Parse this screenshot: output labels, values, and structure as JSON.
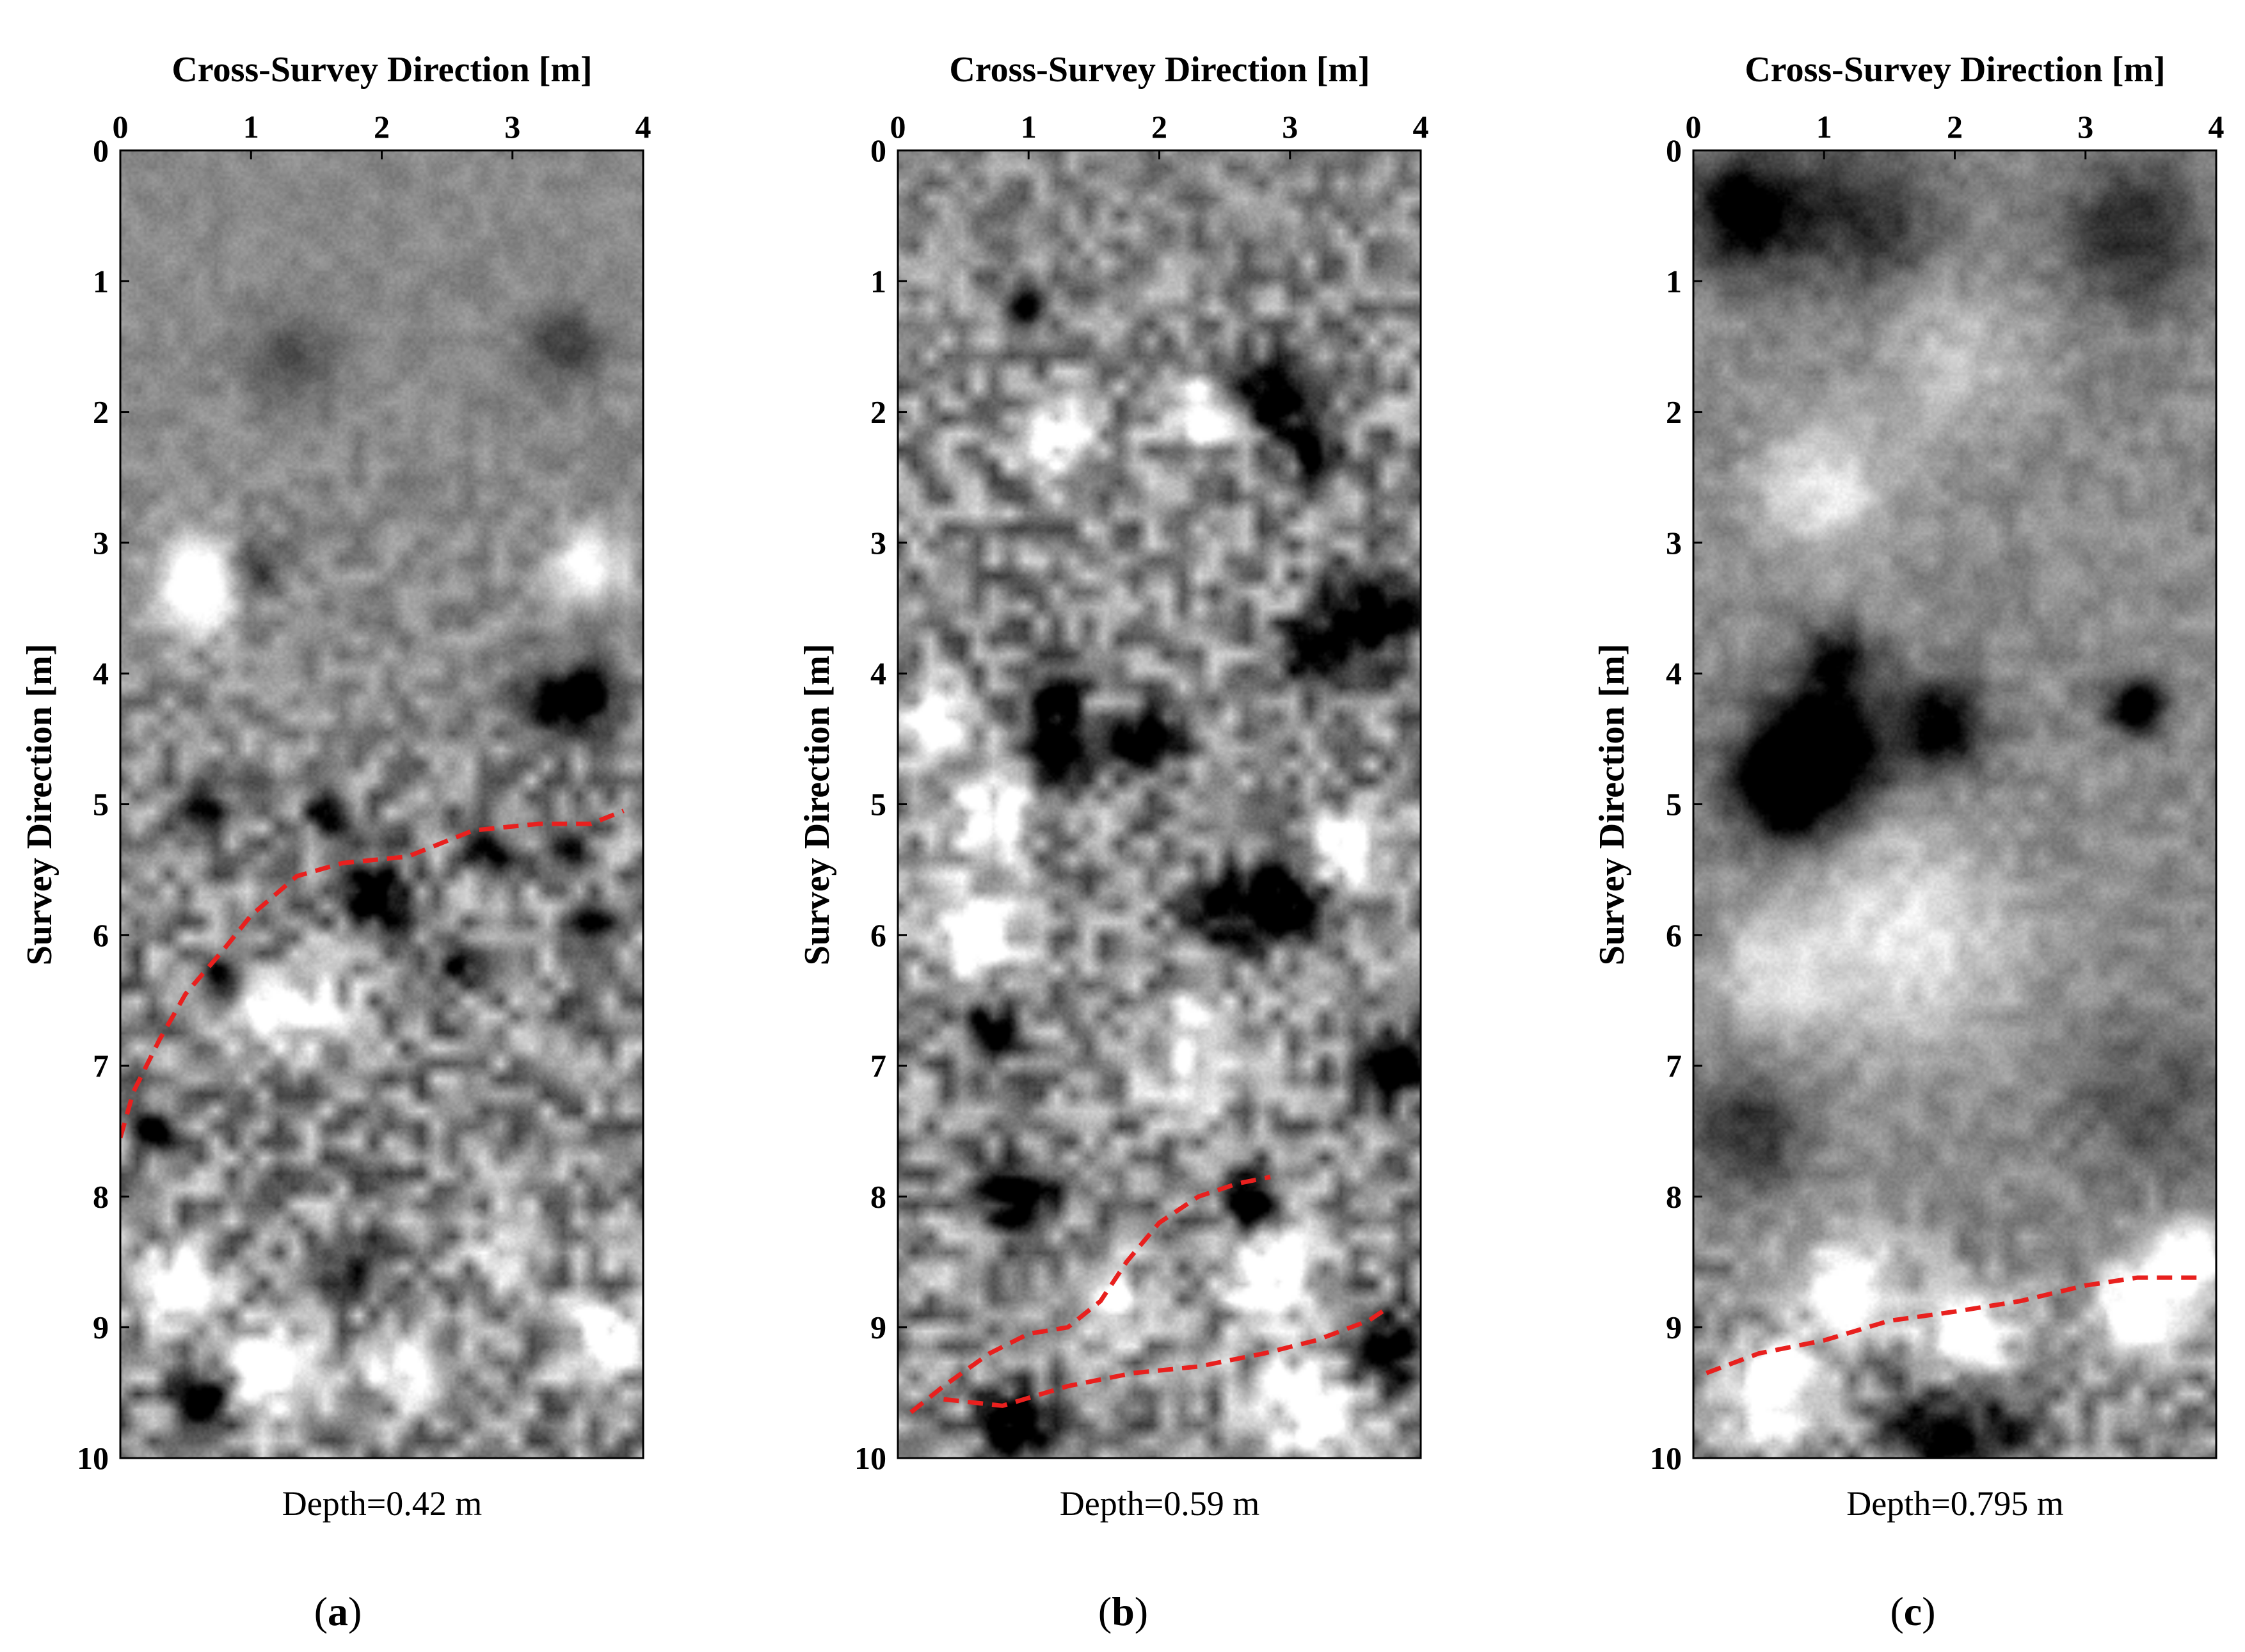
{
  "colors": {
    "boundary_line": "#e8201e",
    "image_mid_gray": "#8a8a8a",
    "axis": "#000000"
  },
  "chart_data": [
    {
      "type": "heatmap",
      "panel_label": "(a)",
      "panel_letter": "a",
      "xlabel": "Cross-Survey Direction [m]",
      "ylabel": "Survey Direction [m]",
      "x_ticks": [
        "0",
        "1",
        "2",
        "3",
        "4"
      ],
      "y_ticks": [
        "0",
        "1",
        "2",
        "3",
        "4",
        "5",
        "6",
        "7",
        "8",
        "9",
        "10"
      ],
      "xlim": [
        0,
        4
      ],
      "ylim": [
        0,
        10
      ],
      "caption": "Depth=0.42 m",
      "depth_m": 0.42,
      "colormap": "gray",
      "boundaries": [
        {
          "x": [
            0.0,
            0.1,
            0.3,
            0.5,
            0.8,
            1.0,
            1.35,
            1.7,
            2.2,
            2.7,
            3.2,
            3.6,
            3.85
          ],
          "y": [
            7.55,
            7.2,
            6.8,
            6.45,
            6.1,
            5.85,
            5.55,
            5.45,
            5.4,
            5.2,
            5.15,
            5.15,
            5.05
          ]
        }
      ],
      "features": [
        {
          "x": 0.6,
          "y": 3.3,
          "v": 0.9,
          "r": 0.25
        },
        {
          "x": 1.0,
          "y": 3.2,
          "v": -0.6,
          "r": 0.15
        },
        {
          "x": 3.6,
          "y": 3.2,
          "v": 0.7,
          "r": 0.2
        },
        {
          "x": 3.6,
          "y": 4.15,
          "v": -1.0,
          "r": 0.15
        },
        {
          "x": 3.3,
          "y": 4.25,
          "v": -0.6,
          "r": 0.2
        },
        {
          "x": 1.3,
          "y": 1.6,
          "v": -0.3,
          "r": 0.25
        },
        {
          "x": 3.4,
          "y": 1.5,
          "v": -0.4,
          "r": 0.2
        },
        {
          "x": 0.6,
          "y": 5.0,
          "v": -0.9,
          "r": 0.12
        },
        {
          "x": 1.6,
          "y": 5.05,
          "v": -0.8,
          "r": 0.12
        },
        {
          "x": 1.95,
          "y": 5.7,
          "v": -1.0,
          "r": 0.18
        },
        {
          "x": 0.8,
          "y": 6.4,
          "v": -1.0,
          "r": 0.15
        },
        {
          "x": 2.6,
          "y": 6.2,
          "v": -0.9,
          "r": 0.12
        },
        {
          "x": 2.8,
          "y": 5.35,
          "v": -0.8,
          "r": 0.12
        },
        {
          "x": 3.4,
          "y": 5.35,
          "v": -0.8,
          "r": 0.1
        },
        {
          "x": 3.6,
          "y": 5.9,
          "v": -0.8,
          "r": 0.12
        },
        {
          "x": 0.25,
          "y": 7.5,
          "v": -1.0,
          "r": 0.12
        },
        {
          "x": 0.4,
          "y": 8.7,
          "v": 0.9,
          "r": 0.2
        },
        {
          "x": 1.1,
          "y": 9.4,
          "v": 0.9,
          "r": 0.25
        },
        {
          "x": 0.65,
          "y": 9.55,
          "v": -1.0,
          "r": 0.18
        },
        {
          "x": 2.2,
          "y": 9.3,
          "v": 0.9,
          "r": 0.2
        },
        {
          "x": 3.7,
          "y": 9.1,
          "v": 0.9,
          "r": 0.2
        },
        {
          "x": 1.8,
          "y": 8.5,
          "v": -0.7,
          "r": 0.15
        },
        {
          "x": 3.0,
          "y": 8.4,
          "v": 0.6,
          "r": 0.2
        },
        {
          "x": 1.5,
          "y": 6.6,
          "v": 0.7,
          "r": 0.2
        },
        {
          "x": 1.0,
          "y": 6.6,
          "v": 0.7,
          "r": 0.2
        }
      ],
      "noise_amplitude": [
        0.18,
        0.2,
        0.25,
        0.4,
        0.55,
        0.9,
        1.0,
        1.0,
        1.0,
        1.0,
        1.0
      ]
    },
    {
      "type": "heatmap",
      "panel_label": "(b)",
      "panel_letter": "b",
      "xlabel": "Cross-Survey Direction [m]",
      "ylabel": "Survey Direction [m]",
      "x_ticks": [
        "0",
        "1",
        "2",
        "3",
        "4"
      ],
      "y_ticks": [
        "0",
        "1",
        "2",
        "3",
        "4",
        "5",
        "6",
        "7",
        "8",
        "9",
        "10"
      ],
      "xlim": [
        0,
        4
      ],
      "ylim": [
        0,
        10
      ],
      "caption": "Depth=0.59 m",
      "depth_m": 0.59,
      "colormap": "gray",
      "boundaries": [
        {
          "x": [
            0.1,
            0.35,
            0.7,
            1.0,
            1.3,
            1.55,
            1.75,
            2.0,
            2.3,
            2.6,
            2.85
          ],
          "y": [
            9.65,
            9.45,
            9.2,
            9.05,
            9.0,
            8.8,
            8.5,
            8.2,
            8.0,
            7.9,
            7.85
          ]
        },
        {
          "x": [
            0.35,
            0.8,
            1.3,
            1.8,
            2.3,
            2.8,
            3.2,
            3.6,
            3.75
          ],
          "y": [
            9.55,
            9.6,
            9.45,
            9.35,
            9.3,
            9.2,
            9.1,
            8.95,
            8.85
          ]
        }
      ],
      "features": [
        {
          "x": 1.0,
          "y": 1.2,
          "v": -0.9,
          "r": 0.12
        },
        {
          "x": 2.9,
          "y": 1.85,
          "v": -1.0,
          "r": 0.2
        },
        {
          "x": 3.2,
          "y": 2.3,
          "v": -0.8,
          "r": 0.15
        },
        {
          "x": 2.3,
          "y": 2.0,
          "v": 0.9,
          "r": 0.18
        },
        {
          "x": 1.2,
          "y": 2.2,
          "v": 0.7,
          "r": 0.2
        },
        {
          "x": 3.6,
          "y": 3.6,
          "v": -1.0,
          "r": 0.25
        },
        {
          "x": 3.1,
          "y": 3.8,
          "v": -0.8,
          "r": 0.15
        },
        {
          "x": 1.2,
          "y": 4.15,
          "v": -1.0,
          "r": 0.12
        },
        {
          "x": 1.25,
          "y": 4.55,
          "v": -1.0,
          "r": 0.2
        },
        {
          "x": 1.9,
          "y": 4.5,
          "v": -0.9,
          "r": 0.18
        },
        {
          "x": 0.3,
          "y": 4.4,
          "v": 0.9,
          "r": 0.2
        },
        {
          "x": 0.7,
          "y": 5.1,
          "v": 0.9,
          "r": 0.2
        },
        {
          "x": 3.0,
          "y": 5.7,
          "v": -1.0,
          "r": 0.22
        },
        {
          "x": 2.5,
          "y": 5.8,
          "v": -0.9,
          "r": 0.18
        },
        {
          "x": 0.6,
          "y": 6.0,
          "v": 0.9,
          "r": 0.25
        },
        {
          "x": 3.4,
          "y": 5.4,
          "v": 0.9,
          "r": 0.2
        },
        {
          "x": 3.8,
          "y": 7.0,
          "v": -1.0,
          "r": 0.2
        },
        {
          "x": 0.9,
          "y": 8.0,
          "v": -1.0,
          "r": 0.2
        },
        {
          "x": 2.7,
          "y": 8.05,
          "v": -1.0,
          "r": 0.15
        },
        {
          "x": 3.7,
          "y": 9.2,
          "v": -1.0,
          "r": 0.22
        },
        {
          "x": 0.9,
          "y": 9.75,
          "v": -1.0,
          "r": 0.18
        },
        {
          "x": 3.2,
          "y": 9.6,
          "v": 0.9,
          "r": 0.3
        },
        {
          "x": 2.8,
          "y": 8.6,
          "v": 0.9,
          "r": 0.25
        },
        {
          "x": 1.6,
          "y": 8.8,
          "v": 0.8,
          "r": 0.2
        },
        {
          "x": 0.7,
          "y": 6.7,
          "v": -0.8,
          "r": 0.15
        },
        {
          "x": 2.3,
          "y": 6.9,
          "v": 0.6,
          "r": 0.3
        }
      ],
      "noise_amplitude": [
        0.55,
        0.8,
        0.95,
        1.0,
        1.0,
        1.0,
        1.0,
        1.0,
        1.0,
        1.0,
        1.0
      ]
    },
    {
      "type": "heatmap",
      "panel_label": "(c)",
      "panel_letter": "c",
      "xlabel": "Cross-Survey Direction [m]",
      "ylabel": "Survey Direction [m]",
      "x_ticks": [
        "0",
        "1",
        "2",
        "3",
        "4"
      ],
      "y_ticks": [
        "0",
        "1",
        "2",
        "3",
        "4",
        "5",
        "6",
        "7",
        "8",
        "9",
        "10"
      ],
      "xlim": [
        0,
        4
      ],
      "ylim": [
        0,
        10
      ],
      "caption": "Depth=0.795 m",
      "depth_m": 0.795,
      "colormap": "gray",
      "boundaries": [
        {
          "x": [
            0.1,
            0.5,
            1.0,
            1.5,
            2.0,
            2.5,
            3.0,
            3.4,
            3.85
          ],
          "y": [
            9.35,
            9.2,
            9.1,
            8.95,
            8.88,
            8.8,
            8.68,
            8.62,
            8.62
          ]
        }
      ],
      "features": [
        {
          "x": 0.4,
          "y": 0.45,
          "v": -0.9,
          "r": 0.3
        },
        {
          "x": 1.3,
          "y": 0.5,
          "v": -0.5,
          "r": 0.4
        },
        {
          "x": 3.4,
          "y": 0.6,
          "v": -0.5,
          "r": 0.4
        },
        {
          "x": 1.0,
          "y": 2.6,
          "v": 0.5,
          "r": 0.35
        },
        {
          "x": 2.0,
          "y": 1.6,
          "v": 0.3,
          "r": 0.4
        },
        {
          "x": 1.0,
          "y": 4.6,
          "v": -1.0,
          "r": 0.35
        },
        {
          "x": 0.7,
          "y": 4.9,
          "v": -0.8,
          "r": 0.3
        },
        {
          "x": 1.9,
          "y": 4.4,
          "v": -0.8,
          "r": 0.25
        },
        {
          "x": 1.1,
          "y": 3.9,
          "v": -0.6,
          "r": 0.2
        },
        {
          "x": 3.4,
          "y": 4.25,
          "v": -1.0,
          "r": 0.15
        },
        {
          "x": 1.6,
          "y": 6.0,
          "v": 0.5,
          "r": 0.6
        },
        {
          "x": 0.6,
          "y": 6.3,
          "v": 0.4,
          "r": 0.3
        },
        {
          "x": 2.0,
          "y": 9.85,
          "v": -0.8,
          "r": 0.35
        },
        {
          "x": 0.6,
          "y": 9.5,
          "v": 0.9,
          "r": 0.25
        },
        {
          "x": 2.1,
          "y": 9.1,
          "v": 0.9,
          "r": 0.25
        },
        {
          "x": 3.4,
          "y": 8.9,
          "v": 0.9,
          "r": 0.25
        },
        {
          "x": 3.8,
          "y": 8.5,
          "v": 0.9,
          "r": 0.2
        },
        {
          "x": 1.2,
          "y": 8.7,
          "v": 0.7,
          "r": 0.3
        },
        {
          "x": 0.4,
          "y": 7.5,
          "v": -0.5,
          "r": 0.3
        },
        {
          "x": 3.5,
          "y": 7.3,
          "v": -0.3,
          "r": 0.4
        }
      ],
      "noise_amplitude": [
        0.25,
        0.3,
        0.3,
        0.3,
        0.35,
        0.35,
        0.3,
        0.3,
        0.35,
        0.7,
        0.9
      ]
    }
  ]
}
